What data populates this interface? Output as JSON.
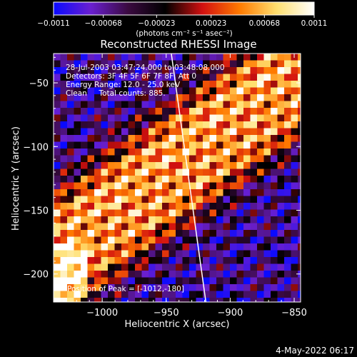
{
  "chart_data": {
    "type": "heatmap",
    "title": "Reconstructed RHESSI Image",
    "xlabel": "Heliocentric X (arcsec)",
    "ylabel": "Heliocentric Y (arcsec)",
    "xlim": [
      -1038,
      -845
    ],
    "ylim": [
      -222,
      -27
    ],
    "x_ticks": [
      {
        "value": -1000,
        "label": "−1000"
      },
      {
        "value": -950,
        "label": "−950"
      },
      {
        "value": -900,
        "label": "−900"
      },
      {
        "value": -850,
        "label": "−850"
      }
    ],
    "y_ticks": [
      {
        "value": -50,
        "label": "−50"
      },
      {
        "value": -100,
        "label": "−100"
      },
      {
        "value": -150,
        "label": "−150"
      },
      {
        "value": -200,
        "label": "−200"
      }
    ],
    "colorbar": {
      "range": [
        -0.0011,
        0.0011
      ],
      "tick_labels": [
        "−0.0011",
        "−0.00068",
        "−0.00023",
        "0.00023",
        "0.00068",
        "0.0011"
      ],
      "unit_label": "(photons cm⁻² s⁻¹ asec⁻²)",
      "colors": [
        "#0a0aff",
        "#6a1fd0",
        "#3a0a40",
        "#000000",
        "#d21010",
        "#ff7a00",
        "#ffe070",
        "#ffffff"
      ]
    },
    "annotations": [
      "28-Jul-2003 03:47:24.000 to 03:48:08.000",
      "Detectors: 3F 4F 5F 6F 7F 8F, Att 0",
      "Energy Range: 12.0 - 25.0 keV",
      "Clean     Total counts: 885."
    ],
    "peak_label": "Position of Peak = [-1012,-180]",
    "peak_position": [
      -1012,
      -180
    ],
    "limb_line": [
      [
        -946,
        -27
      ],
      [
        -919,
        -222
      ]
    ]
  },
  "footer": {
    "date": "4-May-2022 06:17"
  }
}
